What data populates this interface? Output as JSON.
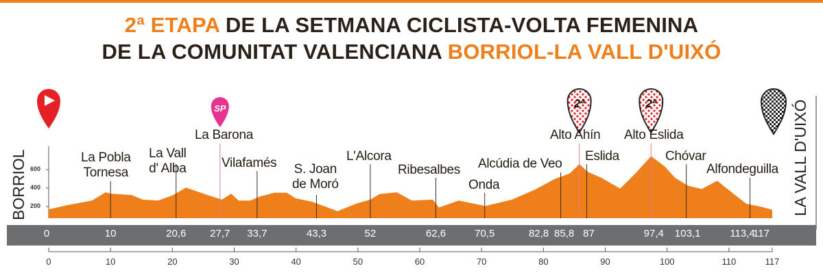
{
  "title": {
    "line1_accent": "2ª ETAPA",
    "line1_rest": " DE LA SETMANA CICLISTA-VOLTA FEMENINA",
    "line2_rest": "DE LA COMUNITAT VALENCIANA ",
    "line2_accent": "BORRIOL-LA VALL D'UIXÓ"
  },
  "start_label": "BORRIOL",
  "finish_label": "LA VALL D'UIXÓ",
  "colors": {
    "profile": "#ef7f1a",
    "title_accent": "#ef7f1a",
    "km_bar": "#6d6e70",
    "start_pin": "#e42127",
    "sprint_pin": "#e6358f",
    "kom_dots": "#e42127"
  },
  "markers": [
    {
      "type": "start",
      "icon": "play-pin",
      "km": 0
    },
    {
      "type": "sprint",
      "icon": "sprint-pin",
      "text": "SP",
      "km": 27.7
    },
    {
      "type": "kom",
      "icon": "polka-dot-pin",
      "text": "2ª",
      "km": 85.8
    },
    {
      "type": "kom",
      "icon": "polka-dot-pin",
      "text": "2ª",
      "km": 97.4
    },
    {
      "type": "finish",
      "icon": "checkered-pin",
      "km": 117
    }
  ],
  "chart_data": {
    "type": "area",
    "xlabel": "",
    "ylabel": "",
    "xlim": [
      0,
      117
    ],
    "ylim_ticks": [
      "200",
      "400",
      "600"
    ],
    "y_ticks": [
      200,
      400,
      600
    ],
    "x_ticks": [
      "0",
      "10",
      "20",
      "30",
      "40",
      "50",
      "60",
      "70",
      "80",
      "90",
      "100",
      "110",
      "117"
    ],
    "x_tick_values": [
      0,
      10,
      20,
      30,
      40,
      50,
      60,
      70,
      80,
      90,
      100,
      110,
      117
    ],
    "km": [
      0,
      3,
      7,
      9.2,
      10,
      13.4,
      15.2,
      17.7,
      20,
      22.2,
      25,
      28,
      29.5,
      30.7,
      32.6,
      34,
      36.5,
      38.5,
      39.9,
      42.7,
      46.7,
      49.7,
      52,
      53.5,
      56.3,
      58.7,
      62.1,
      63.1,
      66.3,
      70.6,
      74.9,
      78.7,
      81.7,
      84.3,
      85.8,
      87.2,
      89.4,
      92.4,
      94.9,
      97.4,
      99.6,
      101.3,
      103.4,
      105.6,
      108.1,
      110.7,
      112.8,
      115.4,
      117
    ],
    "elevation": [
      170,
      215,
      265,
      355,
      340,
      325,
      275,
      265,
      320,
      405,
      340,
      275,
      340,
      265,
      265,
      305,
      350,
      350,
      290,
      250,
      150,
      230,
      275,
      335,
      355,
      265,
      275,
      190,
      265,
      205,
      275,
      385,
      495,
      560,
      660,
      575,
      510,
      395,
      560,
      745,
      635,
      510,
      425,
      390,
      480,
      340,
      230,
      195,
      165
    ],
    "km_points": [
      {
        "label": "0",
        "km": 0
      },
      {
        "label": "10",
        "km": 10
      },
      {
        "label": "20,6",
        "km": 20.6
      },
      {
        "label": "27,7",
        "km": 27.7
      },
      {
        "label": "33,7",
        "km": 33.7
      },
      {
        "label": "43,3",
        "km": 43.3
      },
      {
        "label": "52",
        "km": 52
      },
      {
        "label": "62,6",
        "km": 62.6
      },
      {
        "label": "70,5",
        "km": 70.5
      },
      {
        "label": "82,8",
        "km": 82.8
      },
      {
        "label": "85,8",
        "km": 85.8
      },
      {
        "label": "87",
        "km": 87
      },
      {
        "label": "97,4",
        "km": 97.4
      },
      {
        "label": "103,1",
        "km": 103.1
      },
      {
        "label": "113,4",
        "km": 113.4
      },
      {
        "label": "117",
        "km": 117
      }
    ],
    "waypoints": [
      {
        "lines": [
          "La Pobla",
          "Tornesa"
        ],
        "km": 10
      },
      {
        "lines": [
          "La Vall",
          "d' Alba"
        ],
        "km": 20.6
      },
      {
        "lines": [
          "La Barona"
        ],
        "km": 27.7
      },
      {
        "lines": [
          "Vilafamés"
        ],
        "km": 33.7
      },
      {
        "lines": [
          "S. Joan",
          "de Moró"
        ],
        "km": 43.3
      },
      {
        "lines": [
          "L'Alcora"
        ],
        "km": 52
      },
      {
        "lines": [
          "Ribesalbes"
        ],
        "km": 62.6
      },
      {
        "lines": [
          "Onda"
        ],
        "km": 70.5
      },
      {
        "lines": [
          "Alcúdia de Veo"
        ],
        "km": 82.8
      },
      {
        "lines": [
          "Alto Ahín"
        ],
        "km": 85.8
      },
      {
        "lines": [
          "Eslida"
        ],
        "km": 87
      },
      {
        "lines": [
          "Alto Eslida"
        ],
        "km": 97.4
      },
      {
        "lines": [
          "Chóvar"
        ],
        "km": 103.1
      },
      {
        "lines": [
          "Alfondeguilla"
        ],
        "km": 113.4
      }
    ]
  }
}
